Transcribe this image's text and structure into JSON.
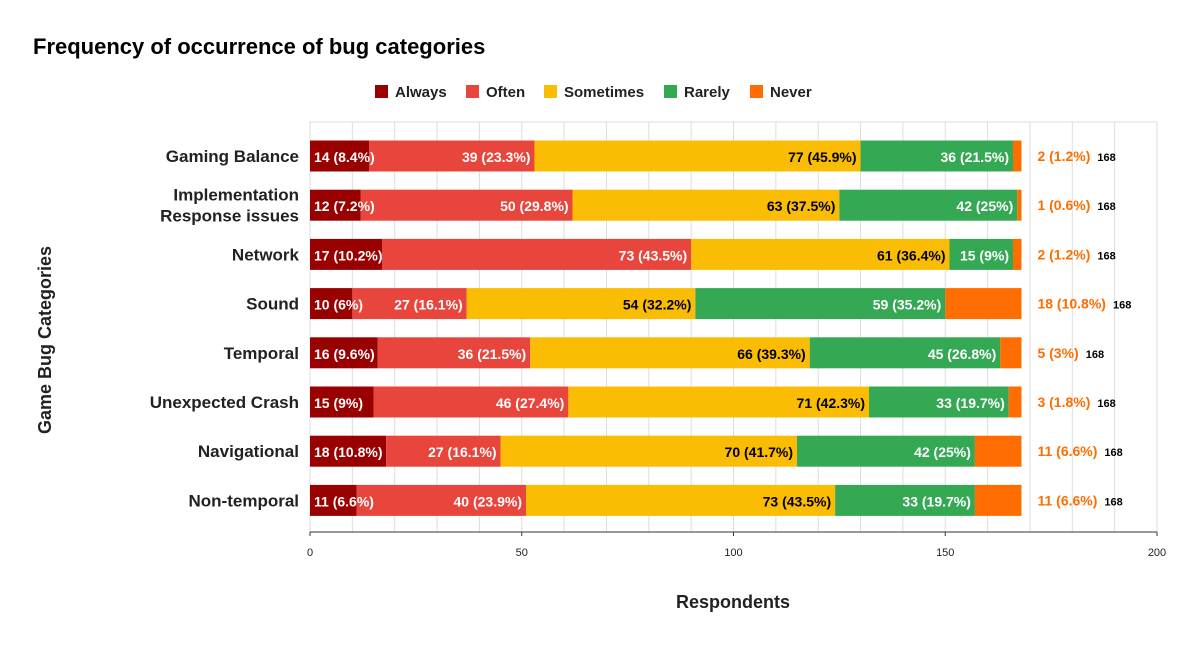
{
  "chart_data": {
    "type": "bar",
    "orientation": "horizontal",
    "stacked": true,
    "title": "Frequency of occurrence of bug categories",
    "xlabel": "Respondents",
    "ylabel": "Game Bug Categories",
    "xlim": [
      0,
      200
    ],
    "xticks": [
      "0",
      "50",
      "100",
      "150",
      "200"
    ],
    "legend_position": "top",
    "grid": true,
    "categories": [
      [
        "Gaming Balance"
      ],
      [
        "Implementation",
        "Response issues"
      ],
      [
        "Network"
      ],
      [
        "Sound"
      ],
      [
        "Temporal"
      ],
      [
        "Unexpected Crash"
      ],
      [
        "Navigational"
      ],
      [
        "Non-temporal"
      ]
    ],
    "series": [
      {
        "name": "Always",
        "color": "#990000",
        "values": [
          14,
          12,
          17,
          10,
          16,
          15,
          18,
          11
        ],
        "labels": [
          "14 (8.4%)",
          "12 (7.2%)",
          "17 (10.2%)",
          "10 (6%)",
          "16 (9.6%)",
          "15 (9%)",
          "18 (10.8%)",
          "11 (6.6%)"
        ]
      },
      {
        "name": "Often",
        "color": "#e8453c",
        "values": [
          39,
          50,
          73,
          27,
          36,
          46,
          27,
          40
        ],
        "labels": [
          "39 (23.3%)",
          "50 (29.8%)",
          "73 (43.5%)",
          "27 (16.1%)",
          "36 (21.5%)",
          "46 (27.4%)",
          "27 (16.1%)",
          "40 (23.9%)"
        ]
      },
      {
        "name": "Sometimes",
        "color": "#fbbc04",
        "values": [
          77,
          63,
          61,
          54,
          66,
          71,
          70,
          73
        ],
        "labels": [
          "77 (45.9%)",
          "63 (37.5%)",
          "61 (36.4%)",
          "54 (32.2%)",
          "66 (39.3%)",
          "71 (42.3%)",
          "70 (41.7%)",
          "73 (43.5%)"
        ]
      },
      {
        "name": "Rarely",
        "color": "#34a853",
        "values": [
          36,
          42,
          15,
          59,
          45,
          33,
          42,
          33
        ],
        "labels": [
          "36 (21.5%)",
          "42 (25%)",
          "15 (9%)",
          "59 (35.2%)",
          "45 (26.8%)",
          "33 (19.7%)",
          "42 (25%)",
          "33 (19.7%)"
        ]
      },
      {
        "name": "Never",
        "color": "#ff6d01",
        "values": [
          2,
          1,
          2,
          18,
          5,
          3,
          11,
          11
        ],
        "labels": [
          "2 (1.2%)",
          "1 (0.6%)",
          "2 (1.2%)",
          "18 (10.8%)",
          "5 (3%)",
          "3 (1.8%)",
          "11 (6.6%)",
          "11 (6.6%)"
        ]
      }
    ],
    "totals": [
      "168",
      "168",
      "168",
      "168",
      "168",
      "168",
      "168",
      "168"
    ]
  }
}
